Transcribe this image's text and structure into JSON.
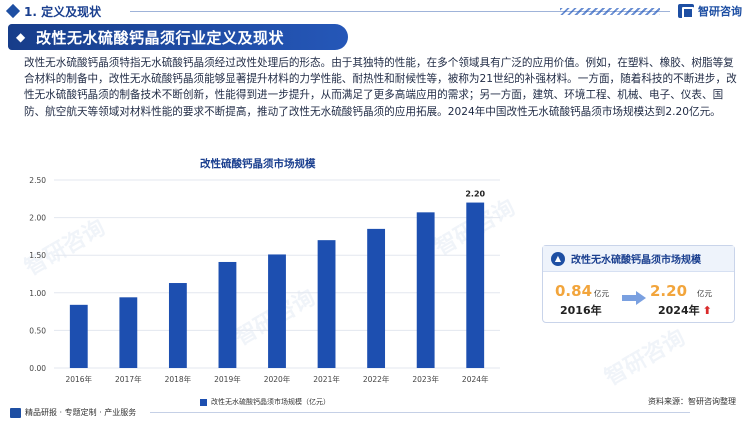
{
  "header": {
    "section_title": "1. 定义及现状",
    "brand": "智研咨询",
    "banner_title": "改性无水硫酸钙晶须行业定义及现状"
  },
  "body_text": "改性无水硫酸钙晶须特指无水硫酸钙晶须经过改性处理后的形态。由于其独特的性能，在多个领域具有广泛的应用价值。例如，在塑料、橡胶、树脂等复合材料的制备中，改性无水硫酸钙晶须能够显著提升材料的力学性能、耐热性和耐候性等，被称为21世纪的补强材料。一方面，随着科技的不断进步，改性无水硫酸钙晶须的制备技术不断创新，性能得到进一步提升，从而满足了更多高端应用的需求；另一方面，建筑、环境工程、机械、电子、仪表、国防、航空航天等领域对材料性能的要求不断提高，推动了改性无水硫酸钙晶须的应用拓展。2024年中国改性无水硫酸钙晶须市场规模达到2.20亿元。",
  "chart_data": {
    "type": "bar",
    "title": "改性硫酸钙晶须市场规模",
    "categories": [
      "2016年",
      "2017年",
      "2018年",
      "2019年",
      "2020年",
      "2021年",
      "2022年",
      "2023年",
      "2024年"
    ],
    "series": [
      {
        "name": "改性无水硫酸钙晶须市场规模（亿元）",
        "values": [
          0.84,
          0.94,
          1.13,
          1.41,
          1.51,
          1.7,
          1.85,
          2.07,
          2.2
        ]
      }
    ],
    "ylim": [
      0,
      2.5
    ],
    "yticks": [
      "0.00",
      "0.50",
      "1.00",
      "1.50",
      "2.00",
      "2.50"
    ],
    "data_labels": {
      "last": "2.20"
    },
    "grid": true,
    "legend": "bottom",
    "bar_color": "#1d4fb0"
  },
  "card": {
    "title": "改性无水硫酸钙晶须市场规模",
    "start_value": "0.84",
    "start_unit": "亿元",
    "start_year": "2016年",
    "end_value": "2.20",
    "end_unit": "亿元",
    "end_year": "2024年"
  },
  "footer": {
    "left_text": "精品研报 · 专题定制 · 产业服务",
    "source": "资料来源：智研咨询整理"
  },
  "colors": {
    "primary": "#1e4fa3",
    "accent_orange": "#f2a53c",
    "up_red": "#d92a2a"
  }
}
